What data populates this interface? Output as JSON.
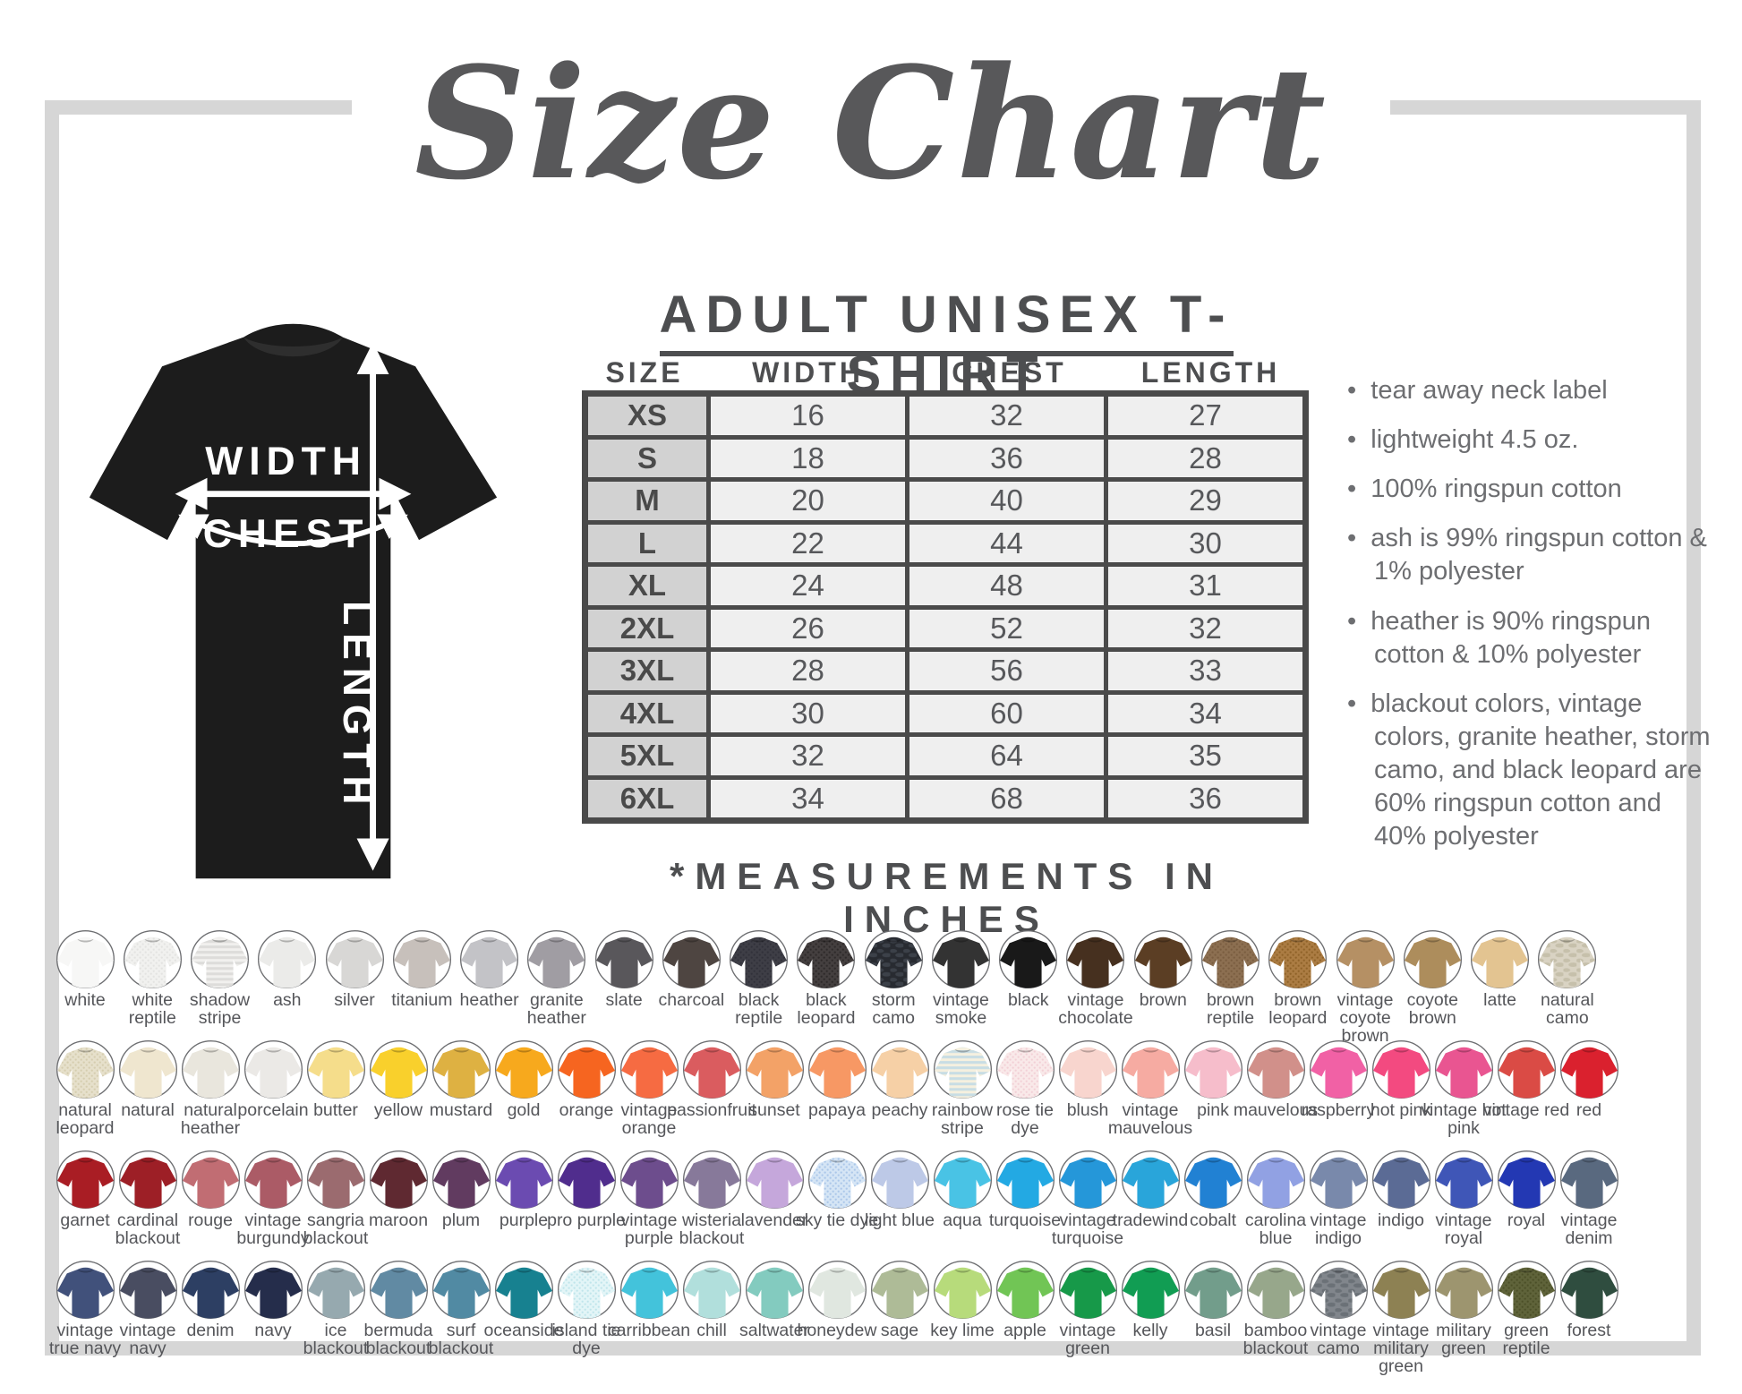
{
  "title": "Size Chart",
  "diagram": {
    "width_label": "WIDTH",
    "chest_label": "CHEST",
    "length_label": "LENGTH"
  },
  "table": {
    "heading": "ADULT UNISEX T-SHIRT",
    "columns": [
      "SIZE",
      "WIDTH",
      "CHEST",
      "LENGTH"
    ],
    "rows": [
      [
        "XS",
        "16",
        "32",
        "27"
      ],
      [
        "S",
        "18",
        "36",
        "28"
      ],
      [
        "M",
        "20",
        "40",
        "29"
      ],
      [
        "L",
        "22",
        "44",
        "30"
      ],
      [
        "XL",
        "24",
        "48",
        "31"
      ],
      [
        "2XL",
        "26",
        "52",
        "32"
      ],
      [
        "3XL",
        "28",
        "56",
        "33"
      ],
      [
        "4XL",
        "30",
        "60",
        "34"
      ],
      [
        "5XL",
        "32",
        "64",
        "35"
      ],
      [
        "6XL",
        "34",
        "68",
        "36"
      ]
    ],
    "footnote": "*MEASUREMENTS IN INCHES"
  },
  "features": [
    "tear away neck label",
    "lightweight 4.5 oz.",
    "100% ringspun cotton",
    "ash is 99% ringspun cotton & 1% polyester",
    "heather is 90% ringspun cotton & 10% polyester",
    "blackout colors, vintage colors, granite heather, storm camo, and black leopard are 60% ringspun cotton and 40% polyester"
  ],
  "colors": {
    "frame_gray": "#d6d6d6",
    "table_border": "#4a4a4a",
    "heading_text": "#4d4e50",
    "body_text": "#6d6e71",
    "title_text": "#58585a",
    "shirt_black": "#1c1c1c"
  },
  "swatch_rows": [
    [
      {
        "name": "white",
        "hex": "#f7f7f6"
      },
      {
        "name": "white reptile",
        "hex": "#f1f1ef",
        "pattern": "dots",
        "hex2": "#e3e3e1"
      },
      {
        "name": "shadow stripe",
        "hex": "#f1f0ee",
        "pattern": "stripe",
        "hex2": "#dddcda"
      },
      {
        "name": "ash",
        "hex": "#ebebe9"
      },
      {
        "name": "silver",
        "hex": "#d8d7d5"
      },
      {
        "name": "titanium",
        "hex": "#c7c0bb"
      },
      {
        "name": "heather",
        "hex": "#c3c3c7"
      },
      {
        "name": "granite heather",
        "hex": "#a09da3"
      },
      {
        "name": "slate",
        "hex": "#59575b"
      },
      {
        "name": "charcoal",
        "hex": "#4e4541"
      },
      {
        "name": "black reptile",
        "hex": "#3e3e46",
        "pattern": "dots",
        "hex2": "#31313a"
      },
      {
        "name": "black leopard",
        "hex": "#443f3f",
        "pattern": "dots",
        "hex2": "#2e2a2a"
      },
      {
        "name": "storm camo",
        "hex": "#282b31",
        "pattern": "camo",
        "hex2": "#3c4149"
      },
      {
        "name": "vintage smoke",
        "hex": "#333333"
      },
      {
        "name": "black",
        "hex": "#191919"
      },
      {
        "name": "vintage chocolate",
        "hex": "#46301f"
      },
      {
        "name": "brown",
        "hex": "#5b3e24"
      },
      {
        "name": "brown reptile",
        "hex": "#8c6f51",
        "pattern": "dots",
        "hex2": "#7a5d40"
      },
      {
        "name": "brown leopard",
        "hex": "#ab7c43",
        "pattern": "dots",
        "hex2": "#8f6228"
      },
      {
        "name": "vintage coyote brown",
        "hex": "#b59064"
      },
      {
        "name": "coyote brown",
        "hex": "#ad8d5c"
      },
      {
        "name": "latte",
        "hex": "#e3c491"
      },
      {
        "name": "natural camo",
        "hex": "#d9d3c3",
        "pattern": "camo",
        "hex2": "#c6c0ab"
      }
    ],
    [
      {
        "name": "natural leopard",
        "hex": "#e6e0cb",
        "pattern": "dots",
        "hex2": "#d5cdaf"
      },
      {
        "name": "natural",
        "hex": "#efe6cf"
      },
      {
        "name": "natural heather",
        "hex": "#e9e6dd"
      },
      {
        "name": "porcelain",
        "hex": "#ebe9e6"
      },
      {
        "name": "butter",
        "hex": "#f5dd8b"
      },
      {
        "name": "yellow",
        "hex": "#f9d02c"
      },
      {
        "name": "mustard",
        "hex": "#deb142"
      },
      {
        "name": "gold",
        "hex": "#f7a91d"
      },
      {
        "name": "orange",
        "hex": "#f66520"
      },
      {
        "name": "vintage orange",
        "hex": "#f66b42"
      },
      {
        "name": "passionfruit",
        "hex": "#da5c5f"
      },
      {
        "name": "sunset",
        "hex": "#f3a267"
      },
      {
        "name": "papaya",
        "hex": "#f79864"
      },
      {
        "name": "peachy",
        "hex": "#f6d0a6"
      },
      {
        "name": "rainbow stripe",
        "hex": "#f5f0df",
        "pattern": "stripe",
        "hex2": "#c8dde4"
      },
      {
        "name": "rose tie dye",
        "hex": "#f9e9e9",
        "pattern": "dots",
        "hex2": "#f2d0d6"
      },
      {
        "name": "blush",
        "hex": "#f8d5ce"
      },
      {
        "name": "vintage mauvelous",
        "hex": "#f6aba2"
      },
      {
        "name": "pink",
        "hex": "#f6bdcb"
      },
      {
        "name": "mauvelous",
        "hex": "#d1908a"
      },
      {
        "name": "raspberry",
        "hex": "#f161a5"
      },
      {
        "name": "hot pink",
        "hex": "#f34a80"
      },
      {
        "name": "vintage hot pink",
        "hex": "#e95591"
      },
      {
        "name": "vintage red",
        "hex": "#da4b45"
      },
      {
        "name": "red",
        "hex": "#da212e"
      }
    ],
    [
      {
        "name": "garnet",
        "hex": "#a91d24"
      },
      {
        "name": "cardinal blackout",
        "hex": "#9d1f26"
      },
      {
        "name": "rouge",
        "hex": "#c16d73"
      },
      {
        "name": "vintage burgundy",
        "hex": "#ab5b66"
      },
      {
        "name": "sangria blackout",
        "hex": "#9b6b6f"
      },
      {
        "name": "maroon",
        "hex": "#5f2931"
      },
      {
        "name": "plum",
        "hex": "#613b60"
      },
      {
        "name": "purple",
        "hex": "#6b4bb1"
      },
      {
        "name": "pro purple",
        "hex": "#502d8d"
      },
      {
        "name": "vintage purple",
        "hex": "#6d4d8d"
      },
      {
        "name": "wisteria blackout",
        "hex": "#87799a"
      },
      {
        "name": "lavender",
        "hex": "#c5a7db"
      },
      {
        "name": "sky tie dye",
        "hex": "#d5e5f5",
        "pattern": "dots",
        "hex2": "#abc7e9"
      },
      {
        "name": "light blue",
        "hex": "#bdc9e7"
      },
      {
        "name": "aqua",
        "hex": "#49c3e5"
      },
      {
        "name": "turquoise",
        "hex": "#23a9e3"
      },
      {
        "name": "vintage turquoise",
        "hex": "#2597d9"
      },
      {
        "name": "tradewind",
        "hex": "#29a5da"
      },
      {
        "name": "cobalt",
        "hex": "#2181d3"
      },
      {
        "name": "carolina blue",
        "hex": "#91a1e3"
      },
      {
        "name": "vintage indigo",
        "hex": "#7989ab"
      },
      {
        "name": "indigo",
        "hex": "#5b6b95"
      },
      {
        "name": "vintage royal",
        "hex": "#3f56b7"
      },
      {
        "name": "royal",
        "hex": "#2338b3"
      },
      {
        "name": "vintage denim",
        "hex": "#59697f"
      }
    ],
    [
      {
        "name": "vintage true navy",
        "hex": "#41517b"
      },
      {
        "name": "vintage navy",
        "hex": "#494d61"
      },
      {
        "name": "denim",
        "hex": "#2d3f63"
      },
      {
        "name": "navy",
        "hex": "#252d4b"
      },
      {
        "name": "ice blackout",
        "hex": "#96a9af"
      },
      {
        "name": "bermuda blackout",
        "hex": "#618aa3"
      },
      {
        "name": "surf blackout",
        "hex": "#518aa3"
      },
      {
        "name": "oceanside",
        "hex": "#178190"
      },
      {
        "name": "island tie dye",
        "hex": "#e3f5f7",
        "pattern": "dots",
        "hex2": "#c0e5eb"
      },
      {
        "name": "carribbean",
        "hex": "#43c3db"
      },
      {
        "name": "chill",
        "hex": "#b1dfdc"
      },
      {
        "name": "saltwater",
        "hex": "#83cbbf"
      },
      {
        "name": "honeydew",
        "hex": "#e0e7e0"
      },
      {
        "name": "sage",
        "hex": "#aebb97"
      },
      {
        "name": "key lime",
        "hex": "#b7db7b"
      },
      {
        "name": "apple",
        "hex": "#71c555"
      },
      {
        "name": "vintage green",
        "hex": "#179949"
      },
      {
        "name": "kelly",
        "hex": "#119d53"
      },
      {
        "name": "basil",
        "hex": "#729d8b"
      },
      {
        "name": "bamboo blackout",
        "hex": "#97a78b"
      },
      {
        "name": "vintage camo",
        "hex": "#81868c",
        "pattern": "camo",
        "hex2": "#6b7177"
      },
      {
        "name": "vintage military green",
        "hex": "#8d8153"
      },
      {
        "name": "military green",
        "hex": "#9d956f"
      },
      {
        "name": "green reptile",
        "hex": "#5f633a",
        "pattern": "dots",
        "hex2": "#4c5028"
      },
      {
        "name": "forest",
        "hex": "#2f4d3f"
      }
    ]
  ]
}
